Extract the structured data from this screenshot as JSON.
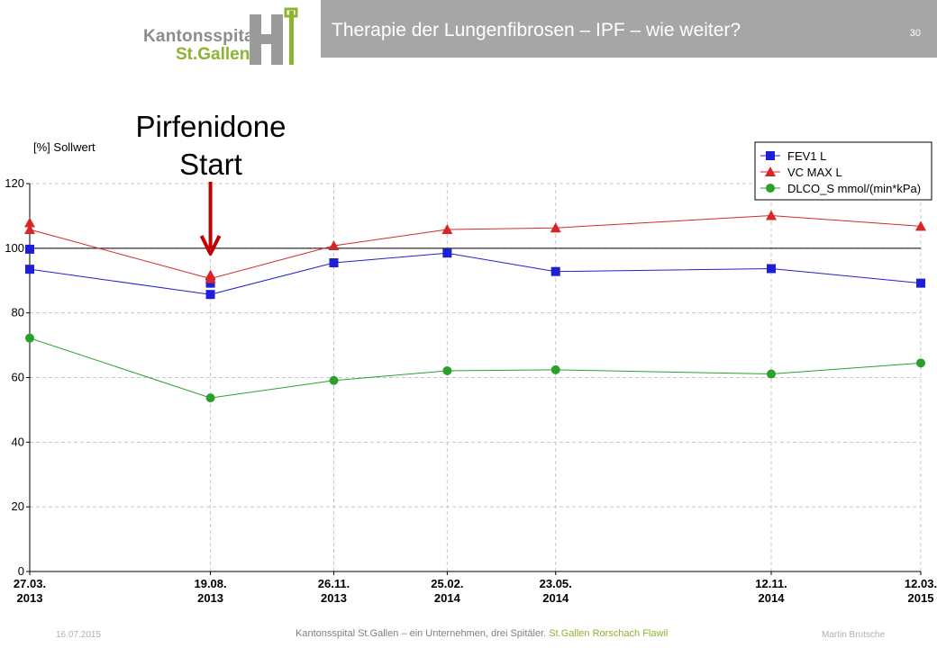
{
  "header": {
    "logo_name": "Kantonsspital",
    "logo_city": "St.Gallen",
    "title": "Therapie der Lungenfibrosen – IPF – wie weiter?",
    "page_number": "30"
  },
  "annotation": {
    "line1": "Pirfenidone",
    "line2": "Start",
    "arrow_color": "#c00000"
  },
  "footer": {
    "date": "16.07.2015",
    "organisation": "Kantonsspital St.Gallen – ein Unternehmen, drei Spitäler.",
    "locations": "St.Gallen  Rorschach  Flawil",
    "author": "Martin Brutsche"
  },
  "chart_data": {
    "type": "line",
    "ylabel": "[%] Sollwert",
    "ylim": [
      0,
      120
    ],
    "yticks": [
      0,
      20,
      40,
      60,
      80,
      100,
      120
    ],
    "reference_line": 100,
    "grid": "horizontal dashed",
    "legend_position": "top-right",
    "categories": [
      {
        "day": "27.03.",
        "year": "2013"
      },
      {
        "day": "19.08.",
        "year": "2013"
      },
      {
        "day": "26.11.",
        "year": "2013"
      },
      {
        "day": "25.02.",
        "year": "2014"
      },
      {
        "day": "23.05.",
        "year": "2014"
      },
      {
        "day": "12.11.",
        "year": "2014"
      },
      {
        "day": "12.03.",
        "year": "2015"
      }
    ],
    "x_dates": [
      "2013-03-27",
      "2013-08-19",
      "2013-11-26",
      "2014-02-25",
      "2014-05-23",
      "2014-11-12",
      "2015-03-12"
    ],
    "series": [
      {
        "name": "FEV1 L",
        "color": "#1f1fd6",
        "marker": "square",
        "values": [
          93.5,
          85.7,
          95.5,
          98.5,
          92.8,
          93.7,
          89.2
        ],
        "extra_points": [
          {
            "date": "2013-03-27",
            "value": 99.7
          },
          {
            "date": "2013-08-19",
            "value": 89.2
          }
        ]
      },
      {
        "name": "VC MAX L",
        "color": "#d62728",
        "marker": "triangle",
        "values": [
          105.8,
          90.6,
          100.8,
          105.8,
          106.3,
          110.1,
          106.8
        ],
        "extra_points": [
          {
            "date": "2013-03-27",
            "value": 107.9
          },
          {
            "date": "2013-08-19",
            "value": 91.7
          }
        ]
      },
      {
        "name": "DLCO_S mmol/(min*kPa)",
        "color": "#2ca02c",
        "marker": "circle",
        "values": [
          72.2,
          53.7,
          59.1,
          62.1,
          62.4,
          61.1,
          64.5
        ],
        "extra_points": []
      }
    ]
  }
}
